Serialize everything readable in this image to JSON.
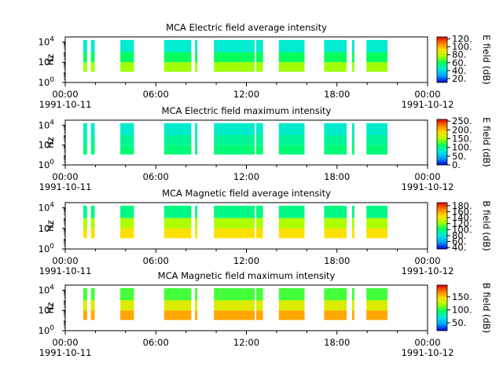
{
  "chart_data": [
    {
      "type": "heatmap",
      "title": "MCA  Electric field average intensity",
      "ylabel": "Hz",
      "colorbar_label": "E field (dB)",
      "colorbar_ticks": [
        "20.",
        "40.",
        "60.",
        "80.",
        "100.",
        "120."
      ],
      "colorbar_range": [
        10,
        125
      ],
      "x_tick_labels": [
        "00:00",
        "06:00",
        "12:00",
        "18:00",
        "00:00"
      ],
      "x_date_labels": [
        "1991-10-11",
        "1991-10-12"
      ],
      "y_tick_labels": [
        {
          "base": "10",
          "exp": "0"
        },
        {
          "base": "10",
          "exp": "2"
        },
        {
          "base": "10",
          "exp": "4"
        }
      ],
      "y_range_log10": [
        0,
        4.5
      ],
      "x_range_hours": [
        0,
        24
      ],
      "data_range_log10": [
        1.05,
        4.2
      ],
      "data_intervals_hours": [
        [
          1.2,
          1.45
        ],
        [
          1.7,
          1.95
        ],
        [
          3.65,
          4.55
        ],
        [
          6.55,
          8.35
        ],
        [
          8.6,
          8.75
        ],
        [
          9.85,
          12.55
        ],
        [
          12.65,
          13.1
        ],
        [
          14.15,
          15.85
        ],
        [
          17.15,
          18.65
        ],
        [
          19.0,
          19.15
        ],
        [
          19.95,
          21.35
        ]
      ],
      "value_profile": [
        [
          "below_1e2",
          75
        ],
        [
          "1e2_to_1e3",
          60
        ],
        [
          "above_1e3",
          45
        ]
      ]
    },
    {
      "type": "heatmap",
      "title": "MCA  Electric field maximum intensity",
      "ylabel": "Hz",
      "colorbar_label": "E field (dB)",
      "colorbar_ticks": [
        "0.",
        "50.",
        "100.",
        "150.",
        "200.",
        "250."
      ],
      "colorbar_range": [
        0,
        260
      ],
      "x_tick_labels": [
        "00:00",
        "06:00",
        "12:00",
        "18:00",
        "00:00"
      ],
      "x_date_labels": [
        "1991-10-11",
        "1991-10-12"
      ],
      "y_tick_labels": [
        {
          "base": "10",
          "exp": "0"
        },
        {
          "base": "10",
          "exp": "2"
        },
        {
          "base": "10",
          "exp": "4"
        }
      ],
      "y_range_log10": [
        0,
        4.5
      ],
      "x_range_hours": [
        0,
        24
      ],
      "data_range_log10": [
        1.05,
        4.2
      ],
      "data_intervals_hours": [
        [
          1.2,
          1.45
        ],
        [
          1.7,
          1.95
        ],
        [
          3.65,
          4.55
        ],
        [
          6.55,
          8.35
        ],
        [
          8.6,
          8.75
        ],
        [
          9.85,
          12.55
        ],
        [
          12.65,
          13.1
        ],
        [
          14.15,
          15.85
        ],
        [
          17.15,
          18.65
        ],
        [
          19.0,
          19.15
        ],
        [
          19.95,
          21.35
        ]
      ],
      "value_profile": [
        [
          "below_1e2",
          105
        ],
        [
          "1e2_to_1e3",
          95
        ],
        [
          "above_1e3",
          80
        ]
      ]
    },
    {
      "type": "heatmap",
      "title": "MCA  Magnetic field average intensity",
      "ylabel": "Hz",
      "colorbar_label": "B field (dB)",
      "colorbar_ticks": [
        "40.",
        "60.",
        "80.",
        "100.",
        "120.",
        "140.",
        "160.",
        "180."
      ],
      "colorbar_range": [
        35,
        190
      ],
      "x_tick_labels": [
        "00:00",
        "06:00",
        "12:00",
        "18:00",
        "00:00"
      ],
      "x_date_labels": [
        "1991-10-11",
        "1991-10-12"
      ],
      "y_tick_labels": [
        {
          "base": "10",
          "exp": "0"
        },
        {
          "base": "10",
          "exp": "2"
        },
        {
          "base": "10",
          "exp": "4"
        }
      ],
      "y_range_log10": [
        0,
        4.5
      ],
      "x_range_hours": [
        0,
        24
      ],
      "data_range_log10": [
        1.05,
        4.2
      ],
      "data_intervals_hours": [
        [
          1.2,
          1.45
        ],
        [
          1.7,
          1.95
        ],
        [
          3.65,
          4.55
        ],
        [
          6.55,
          8.35
        ],
        [
          8.6,
          8.75
        ],
        [
          9.85,
          12.55
        ],
        [
          12.65,
          13.1
        ],
        [
          14.15,
          15.85
        ],
        [
          17.15,
          18.65
        ],
        [
          19.0,
          19.15
        ],
        [
          19.95,
          21.35
        ]
      ],
      "value_profile": [
        [
          "below_1e2",
          145
        ],
        [
          "1e2_to_1e3",
          125
        ],
        [
          "above_1e3",
          95
        ]
      ]
    },
    {
      "type": "heatmap",
      "title": "MCA  Magnetic field maximum intensity",
      "ylabel": "Hz",
      "colorbar_label": "B field (dB)",
      "colorbar_ticks": [
        "50.",
        "100.",
        "150."
      ],
      "colorbar_range": [
        20,
        195
      ],
      "x_tick_labels": [
        "00:00",
        "06:00",
        "12:00",
        "18:00",
        "00:00"
      ],
      "x_date_labels": [
        "1991-10-11",
        "1991-10-12"
      ],
      "y_tick_labels": [
        {
          "base": "10",
          "exp": "0"
        },
        {
          "base": "10",
          "exp": "2"
        },
        {
          "base": "10",
          "exp": "4"
        }
      ],
      "y_range_log10": [
        0,
        4.5
      ],
      "x_range_hours": [
        0,
        24
      ],
      "data_range_log10": [
        1.05,
        4.2
      ],
      "data_intervals_hours": [
        [
          1.2,
          1.45
        ],
        [
          1.7,
          1.95
        ],
        [
          3.65,
          4.55
        ],
        [
          6.55,
          8.35
        ],
        [
          8.6,
          8.75
        ],
        [
          9.85,
          12.55
        ],
        [
          12.65,
          13.1
        ],
        [
          14.15,
          15.85
        ],
        [
          17.15,
          18.65
        ],
        [
          19.0,
          19.15
        ],
        [
          19.95,
          21.35
        ]
      ],
      "value_profile": [
        [
          "below_1e2",
          160
        ],
        [
          "1e2_to_1e3",
          135
        ],
        [
          "above_1e3",
          105
        ]
      ]
    }
  ],
  "colormap": [
    "#0000d0",
    "#00a0ff",
    "#00e8e0",
    "#00ff60",
    "#a8ff00",
    "#ffe000",
    "#ff8000",
    "#e00000"
  ]
}
